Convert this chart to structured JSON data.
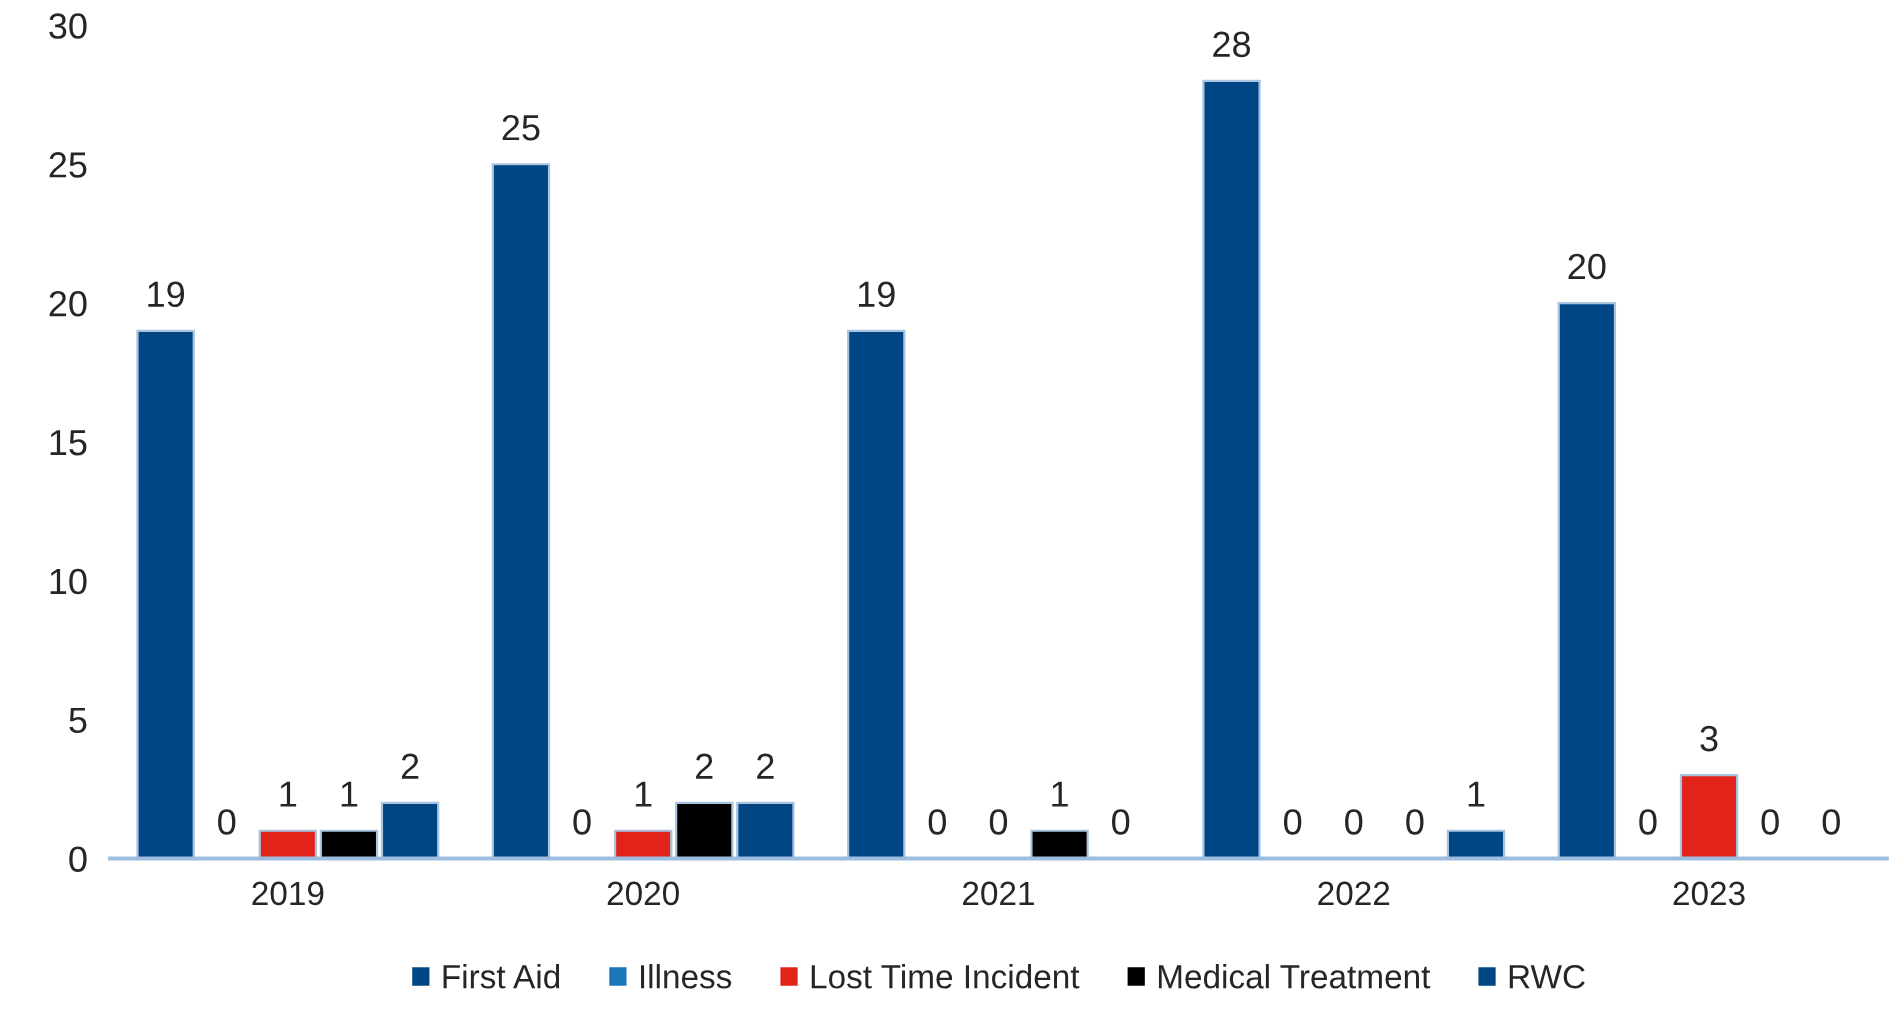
{
  "chart_data": {
    "type": "bar",
    "categories": [
      "2019",
      "2020",
      "2021",
      "2022",
      "2023"
    ],
    "series": [
      {
        "name": "First Aid",
        "color": "#004684",
        "values": [
          19,
          25,
          19,
          28,
          20
        ]
      },
      {
        "name": "Illness",
        "color": "#1a75bb",
        "values": [
          0,
          0,
          0,
          0,
          0
        ]
      },
      {
        "name": "Lost Time Incident",
        "color": "#e2231a",
        "values": [
          1,
          1,
          0,
          0,
          3
        ]
      },
      {
        "name": "Medical Treatment",
        "color": "#000000",
        "values": [
          1,
          2,
          1,
          0,
          0
        ]
      },
      {
        "name": "RWC",
        "color": "#004684",
        "values": [
          2,
          2,
          0,
          1,
          0
        ]
      }
    ],
    "ylim": [
      0,
      30
    ],
    "yticks": [
      0,
      5,
      10,
      15,
      20,
      25,
      30
    ],
    "data_labels": true,
    "legend": "bottom",
    "grid": false
  }
}
